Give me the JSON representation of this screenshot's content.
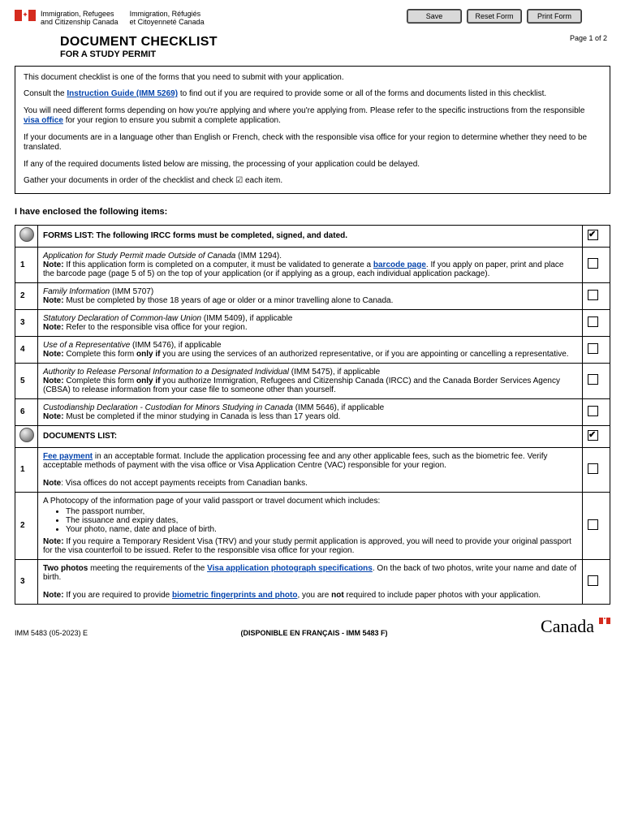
{
  "header": {
    "dept_en_l1": "Immigration, Refugees",
    "dept_en_l2": "and Citizenship Canada",
    "dept_fr_l1": "Immigration, Réfugiés",
    "dept_fr_l2": "et Citoyenneté Canada",
    "btn_save": "Save",
    "btn_reset": "Reset Form",
    "btn_print": "Print Form",
    "page_label": "Page 1 of 2",
    "title": "DOCUMENT CHECKLIST",
    "subtitle": "FOR A STUDY PERMIT"
  },
  "intro": {
    "p1": "This document checklist is one of the forms that you need to submit with your application.",
    "p2a": "Consult the ",
    "p2link": "Instruction Guide (IMM 5269)",
    "p2b": " to find out if you are required to provide some or all of the forms and documents listed in this checklist.",
    "p3a": "You will need different forms depending on how you're applying and where you're applying from. Please refer to the specific instructions from the responsible ",
    "p3link": "visa office",
    "p3b": " for your region to ensure you submit a complete application.",
    "p4": "If your documents are in a language other than English or French, check with the responsible visa office for your region to determine whether they need to be translated.",
    "p5": "If any of the required documents listed below are missing, the processing of your application could be delayed.",
    "p6": "Gather your documents in order of the checklist and check ☑ each item."
  },
  "enclosed_label": "I have enclosed the following items:",
  "forms_header": "FORMS LIST: The following IRCC forms must be completed, signed, and dated.",
  "docs_header": "DOCUMENTS LIST:",
  "forms": [
    {
      "num": "1",
      "title": "Application for Study Permit made Outside of Canada",
      "code": " (IMM 1294).",
      "note_a": "If this application form is completed on a computer, it must be validated to generate a ",
      "note_link": "barcode page",
      "note_b": ". If you apply on paper, print and place the barcode page (page 5 of 5) on the top of your application (or if applying as a group, each individual application package)."
    },
    {
      "num": "2",
      "title": "Family Information",
      "code": " (IMM 5707)",
      "note": "Must be completed by those 18 years of age or older or a minor travelling alone to Canada."
    },
    {
      "num": "3",
      "title": "Statutory Declaration of Common-law Union",
      "code": " (IMM 5409), if applicable",
      "note": "Refer to the responsible visa office for your region."
    },
    {
      "num": "4",
      "title": "Use of a Representative",
      "code": " (IMM 5476), if applicable",
      "note_a": "Complete this form ",
      "note_bold": "only if",
      "note_b": " you are using the services of an authorized representative, or if you are appointing or cancelling a representative."
    },
    {
      "num": "5",
      "title": "Authority to Release Personal Information to a Designated Individual",
      "code": " (IMM 5475), if applicable",
      "note_a": "Complete this form ",
      "note_bold": "only if",
      "note_b": " you authorize Immigration, Refugees and Citizenship Canada (IRCC) and the Canada Border Services Agency (CBSA) to release information from your case file to someone other than yourself."
    },
    {
      "num": "6",
      "title": "Custodianship Declaration - Custodian for Minors Studying in Canada",
      "code": " (IMM 5646), if applicable",
      "note": "Must be completed if the minor studying in Canada is less than 17 years old."
    }
  ],
  "docs": [
    {
      "num": "1",
      "link1": "Fee payment",
      "p1": " in an acceptable format. Include the application processing fee and any other applicable fees, such as the biometric fee. Verify acceptable methods of payment with the visa office or Visa Application Centre (VAC) responsible for your region.",
      "note": ": Visa offices do not accept payments receipts from Canadian banks."
    },
    {
      "num": "2",
      "p1": "A Photocopy of the information page of your valid passport or travel document which includes:",
      "li1": "The passport number,",
      "li2": "The issuance and expiry dates,",
      "li3": "Your photo, name, date and place of birth.",
      "note": "If you require a Temporary Resident Visa (TRV) and your study permit application is approved, you will need to provide your original passport for the visa counterfoil to be issued. Refer to the responsible visa office for your region."
    },
    {
      "num": "3",
      "p1a": "Two photos",
      "p1b": " meeting the requirements of the ",
      "link1": "Visa application photograph specifications",
      "p1c": ". On the back of two photos, write your name and date of birth.",
      "note_a": "If you are required to provide ",
      "link2": "biometric fingerprints and photo",
      "note_b": ", you are ",
      "note_bold": "not",
      "note_c": " required to include paper photos with your application."
    }
  ],
  "note_label": "Note:",
  "note_label2": "Note",
  "footer": {
    "form_code": "IMM 5483 (05-2023) E",
    "disponible": "(DISPONIBLE EN FRANÇAIS - IMM 5483 F)",
    "wordmark": "Canada"
  }
}
